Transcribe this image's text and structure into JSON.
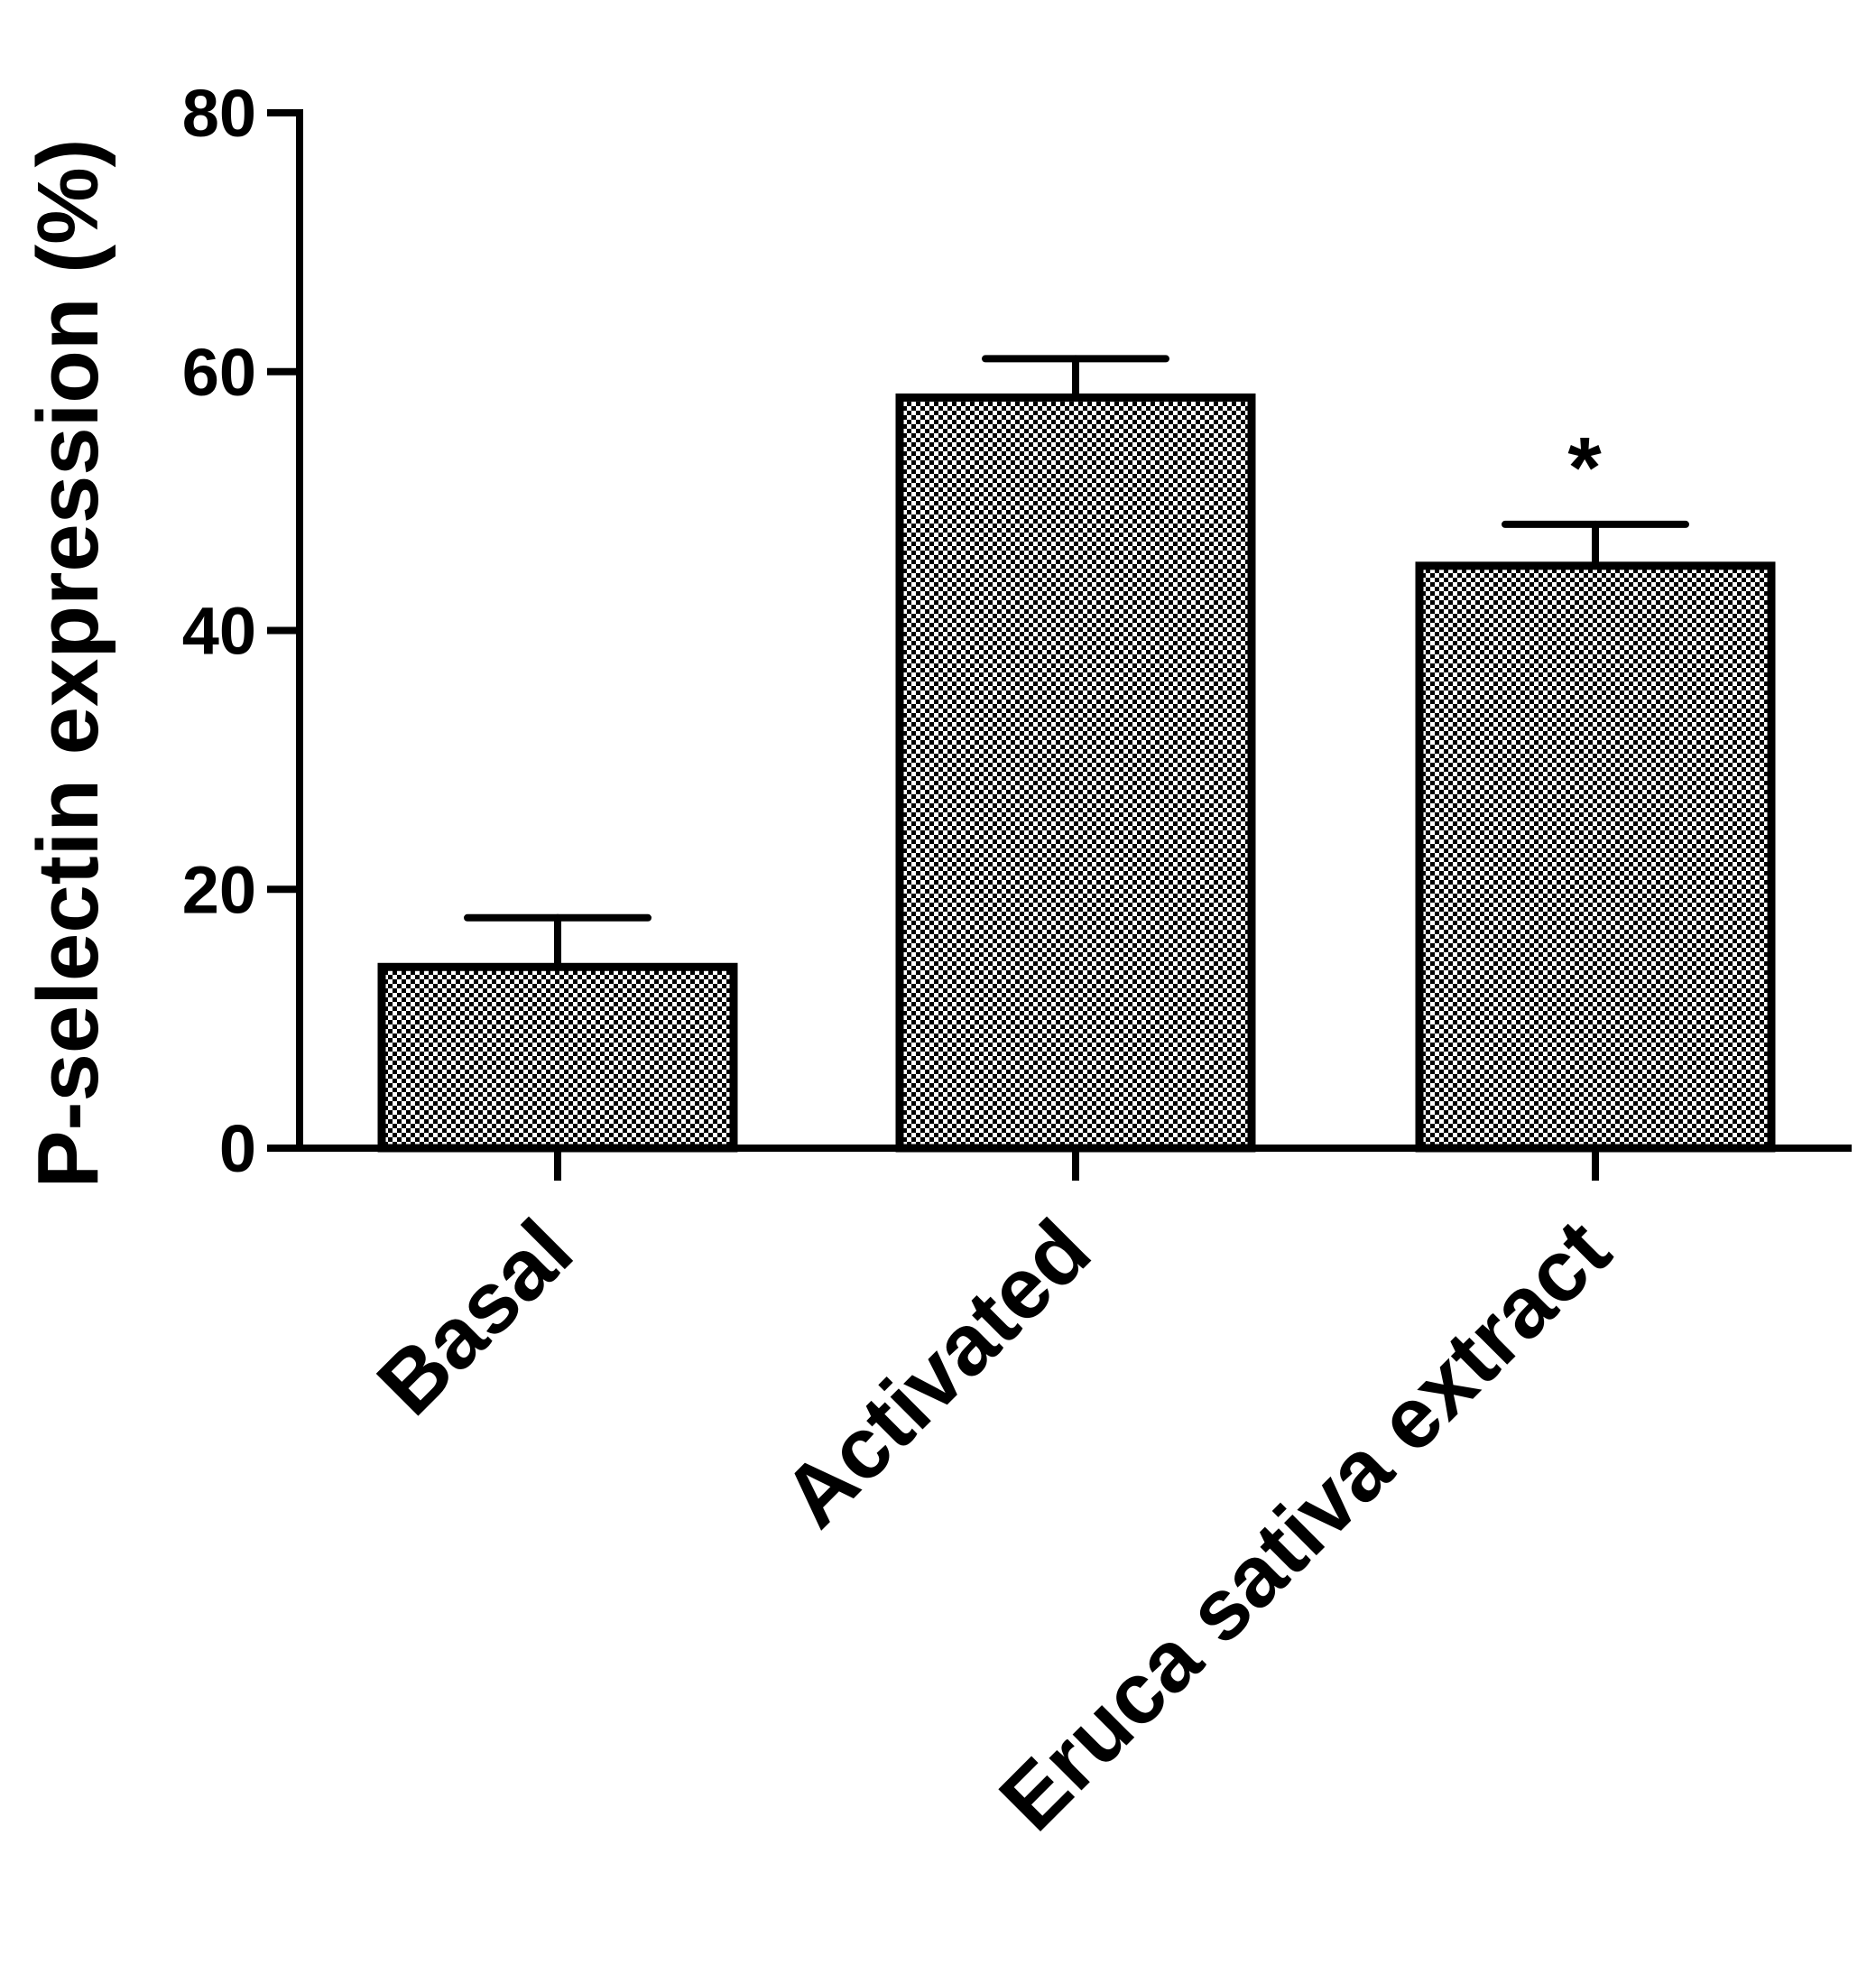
{
  "chart_data": {
    "type": "bar",
    "title": "",
    "xlabel": "",
    "ylabel": "P-selectin expression (%)",
    "ylim": [
      0,
      80
    ],
    "yticks": [
      "0",
      "20",
      "40",
      "60",
      "80"
    ],
    "grid": false,
    "categories": [
      "Basal",
      "Activated",
      "Eruca sativa extract"
    ],
    "values": [
      14,
      58,
      45
    ],
    "error": [
      3.8,
      3,
      3.2
    ],
    "annotations": [
      "",
      "",
      "*"
    ],
    "bar_fill": "checkered",
    "colors": {
      "bar_dark": "#000000",
      "bar_light": "#ffffff",
      "axis": "#000000"
    }
  }
}
